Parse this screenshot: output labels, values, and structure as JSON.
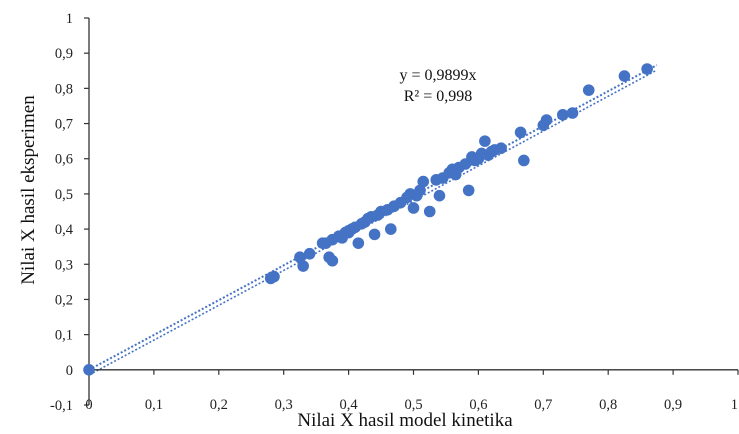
{
  "chart_data": {
    "type": "scatter",
    "xlabel": "Nilai X hasil model kinetika",
    "ylabel": "Nilai X hasil eksperimen",
    "xlim": [
      0,
      1
    ],
    "ylim": [
      -0.1,
      1
    ],
    "x_ticks": [
      "0",
      "0,1",
      "0,2",
      "0,3",
      "0,4",
      "0,5",
      "0,6",
      "0,7",
      "0,8",
      "0,9",
      "1"
    ],
    "y_ticks": [
      "-0,1",
      "0",
      "0,1",
      "0,2",
      "0,3",
      "0,4",
      "0,5",
      "0,6",
      "0,7",
      "0,8",
      "0,9",
      "1"
    ],
    "annotations": {
      "equation": "y = 0,9899x",
      "r_squared": "R² = 0,998"
    },
    "trendline": {
      "type": "linear",
      "slope": 0.9899,
      "intercept": 0,
      "style": "dotted"
    },
    "grid": false,
    "colors": {
      "points": "#4472C4",
      "trendline": "#4472C4",
      "axis": "#333333"
    },
    "series": [
      {
        "points": [
          [
            0,
            0
          ],
          [
            0.28,
            0.26
          ],
          [
            0.285,
            0.265
          ],
          [
            0.325,
            0.32
          ],
          [
            0.33,
            0.295
          ],
          [
            0.34,
            0.33
          ],
          [
            0.36,
            0.36
          ],
          [
            0.365,
            0.36
          ],
          [
            0.37,
            0.32
          ],
          [
            0.375,
            0.31
          ],
          [
            0.375,
            0.37
          ],
          [
            0.385,
            0.38
          ],
          [
            0.39,
            0.375
          ],
          [
            0.395,
            0.39
          ],
          [
            0.4,
            0.395
          ],
          [
            0.4,
            0.39
          ],
          [
            0.405,
            0.4
          ],
          [
            0.41,
            0.405
          ],
          [
            0.415,
            0.36
          ],
          [
            0.42,
            0.415
          ],
          [
            0.425,
            0.42
          ],
          [
            0.43,
            0.43
          ],
          [
            0.435,
            0.435
          ],
          [
            0.44,
            0.385
          ],
          [
            0.445,
            0.44
          ],
          [
            0.45,
            0.45
          ],
          [
            0.46,
            0.455
          ],
          [
            0.465,
            0.4
          ],
          [
            0.47,
            0.465
          ],
          [
            0.48,
            0.475
          ],
          [
            0.49,
            0.49
          ],
          [
            0.495,
            0.5
          ],
          [
            0.5,
            0.46
          ],
          [
            0.505,
            0.495
          ],
          [
            0.51,
            0.51
          ],
          [
            0.515,
            0.535
          ],
          [
            0.525,
            0.45
          ],
          [
            0.535,
            0.54
          ],
          [
            0.54,
            0.495
          ],
          [
            0.545,
            0.545
          ],
          [
            0.555,
            0.56
          ],
          [
            0.56,
            0.57
          ],
          [
            0.565,
            0.555
          ],
          [
            0.57,
            0.575
          ],
          [
            0.58,
            0.585
          ],
          [
            0.585,
            0.51
          ],
          [
            0.59,
            0.605
          ],
          [
            0.595,
            0.595
          ],
          [
            0.6,
            0.6
          ],
          [
            0.605,
            0.615
          ],
          [
            0.61,
            0.65
          ],
          [
            0.615,
            0.61
          ],
          [
            0.62,
            0.62
          ],
          [
            0.625,
            0.625
          ],
          [
            0.635,
            0.63
          ],
          [
            0.665,
            0.675
          ],
          [
            0.67,
            0.595
          ],
          [
            0.7,
            0.695
          ],
          [
            0.705,
            0.71
          ],
          [
            0.73,
            0.725
          ],
          [
            0.745,
            0.73
          ],
          [
            0.77,
            0.795
          ],
          [
            0.825,
            0.835
          ],
          [
            0.86,
            0.855
          ]
        ]
      }
    ]
  }
}
